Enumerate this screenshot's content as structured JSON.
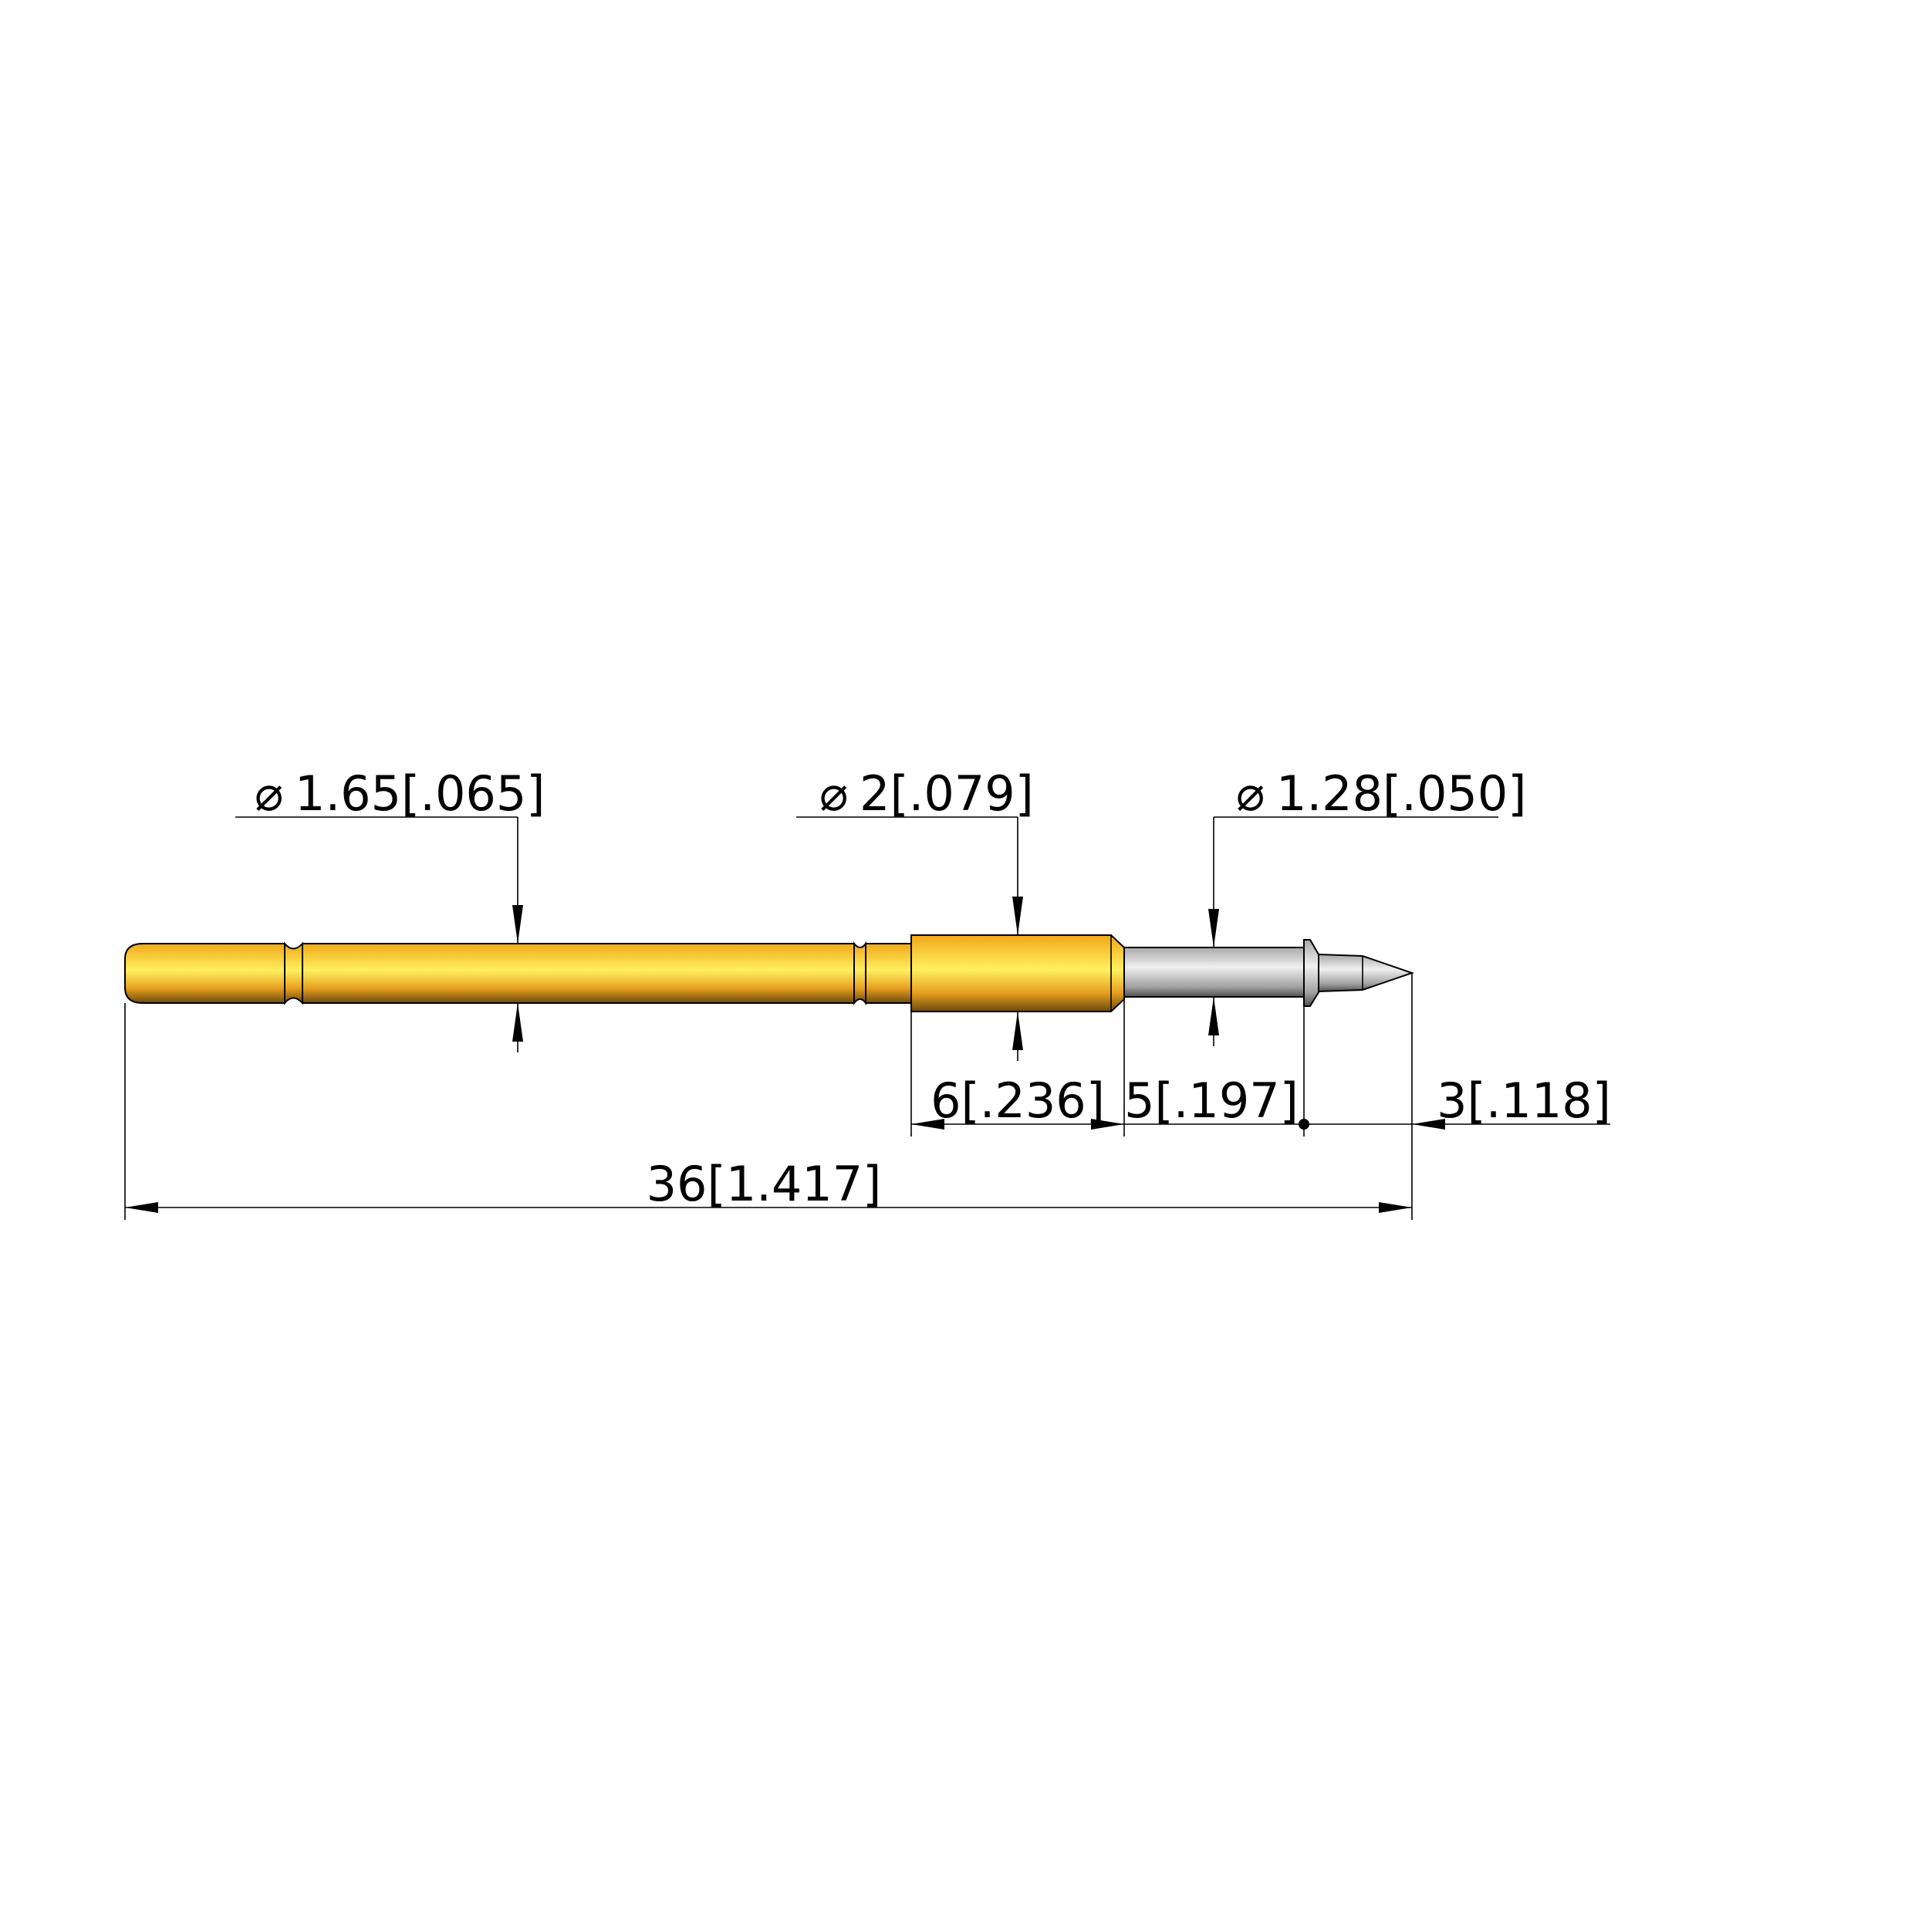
{
  "dimensions": {
    "dia_tail": {
      "symbol": "⌀",
      "value": "1.65[.065]"
    },
    "dia_barrel": {
      "symbol": "⌀",
      "value": "2[.079]"
    },
    "dia_plunger": {
      "symbol": "⌀",
      "value": "1.28[.050]"
    },
    "len_barrel": "6[.236]",
    "len_plunger": "5[.197]",
    "len_tip": "3[.118]",
    "len_total": "36[1.417]"
  },
  "colors": {
    "gold": "#FFC020",
    "silver": "#C8C8C8"
  }
}
